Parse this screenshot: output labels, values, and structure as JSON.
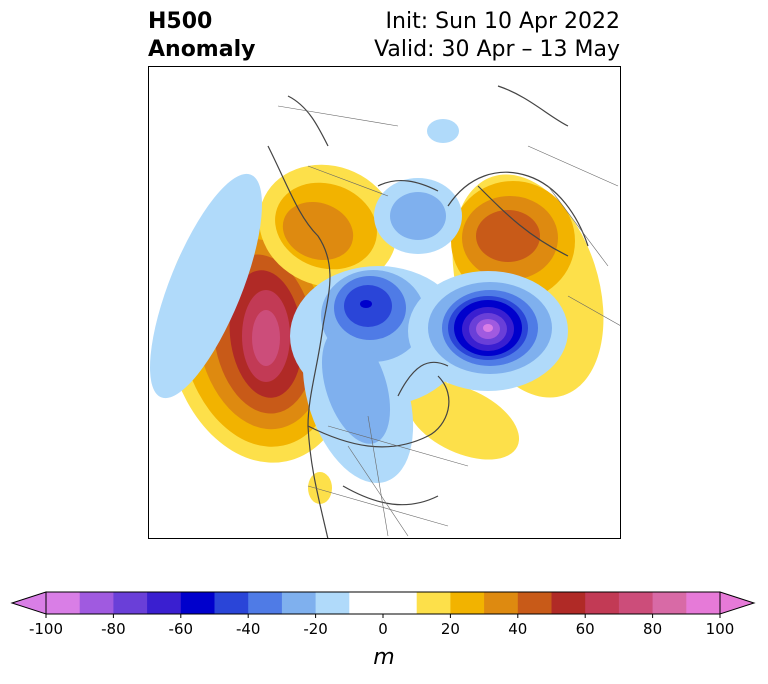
{
  "header": {
    "title_line1": "H500",
    "title_line2": "Anomaly",
    "init_label": "Init: Sun 10 Apr 2022",
    "valid_label": "Valid: 30 Apr – 13 May"
  },
  "map": {
    "projection": "polar stereographic (North America / Arctic)",
    "variable": "500 hPa height anomaly"
  },
  "colorbar": {
    "unit": "m",
    "ticks": [
      "-100",
      "-80",
      "-60",
      "-40",
      "-20",
      "0",
      "20",
      "40",
      "60",
      "80",
      "100"
    ],
    "tick_values": [
      -100,
      -80,
      -60,
      -40,
      -20,
      0,
      20,
      40,
      60,
      80,
      100
    ],
    "range": [
      -100,
      100
    ],
    "step": 10,
    "colors": [
      "#d97ee6",
      "#a05ae0",
      "#6a3fd8",
      "#3a1fd0",
      "#0000cc",
      "#2a45d8",
      "#4f7be6",
      "#7fb0ee",
      "#b0dafa",
      "#ffffff",
      "#ffffff",
      "#fde04a",
      "#f2b300",
      "#de8a10",
      "#c85a18",
      "#b02a26",
      "#c23a55",
      "#cc4d7a",
      "#d86aa6",
      "#e67ad8"
    ],
    "min_extend_color": "#d97ee6",
    "max_extend_color": "#e67ad8"
  }
}
